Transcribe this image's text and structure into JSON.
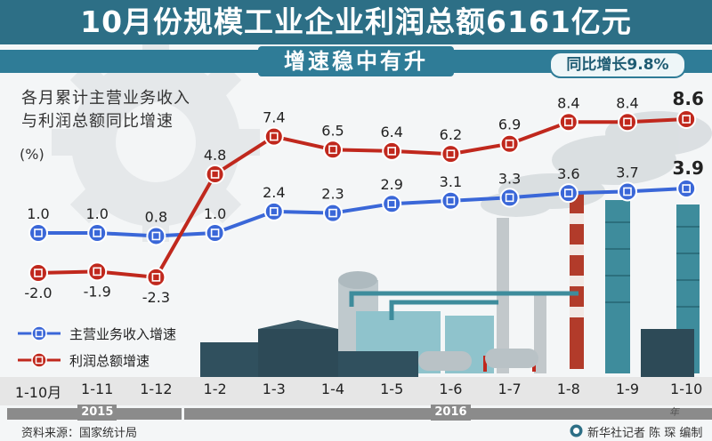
{
  "header": {
    "title": "10月份规模工业企业利润总额6161亿元",
    "subtitle": "增速稳中有升",
    "yoy_badge": "同比增长9.8%"
  },
  "chart_title_line1": "各月累计主营业务收入",
  "chart_title_line2": "与利润总额同比增速",
  "unit": "(%)",
  "chart_data": {
    "type": "line",
    "categories": [
      "1-10月",
      "1-11",
      "1-12",
      "1-2",
      "1-3",
      "1-4",
      "1-5",
      "1-6",
      "1-7",
      "1-8",
      "1-9",
      "1-10"
    ],
    "series": [
      {
        "name": "主营业务收入增速",
        "color": "#3a67d8",
        "values": [
          1.0,
          1.0,
          0.8,
          1.0,
          2.4,
          2.3,
          2.9,
          3.1,
          3.3,
          3.6,
          3.7,
          3.9
        ],
        "labels": [
          "1.0",
          "1.0",
          "0.8",
          "1.0",
          "2.4",
          "2.3",
          "2.9",
          "3.1",
          "3.3",
          "3.6",
          "3.7",
          "3.9"
        ]
      },
      {
        "name": "利润总额增速",
        "color": "#c0281d",
        "values": [
          -2.0,
          -1.9,
          -2.3,
          4.8,
          7.4,
          6.5,
          6.4,
          6.2,
          6.9,
          8.4,
          8.4,
          8.6
        ],
        "labels": [
          "-2.0",
          "-1.9",
          "-2.3",
          "4.8",
          "7.4",
          "6.5",
          "6.4",
          "6.2",
          "6.9",
          "8.4",
          "8.4",
          "8.6"
        ]
      }
    ],
    "year_groups": [
      {
        "label": "2015",
        "from": 0,
        "to": 2
      },
      {
        "label": "2016",
        "from": 3,
        "to": 11
      }
    ],
    "year_unit": "年"
  },
  "legend": {
    "revenue": "主营业务收入增速",
    "profit": "利润总额增速"
  },
  "footer": {
    "source": "资料来源：国家统计局",
    "credit": "新华社记者 陈 琛 编制"
  },
  "colors": {
    "title_bar": "#2d6f86",
    "revenue": "#3a67d8",
    "profit": "#c0281d",
    "industrial": "#2f8a97"
  }
}
